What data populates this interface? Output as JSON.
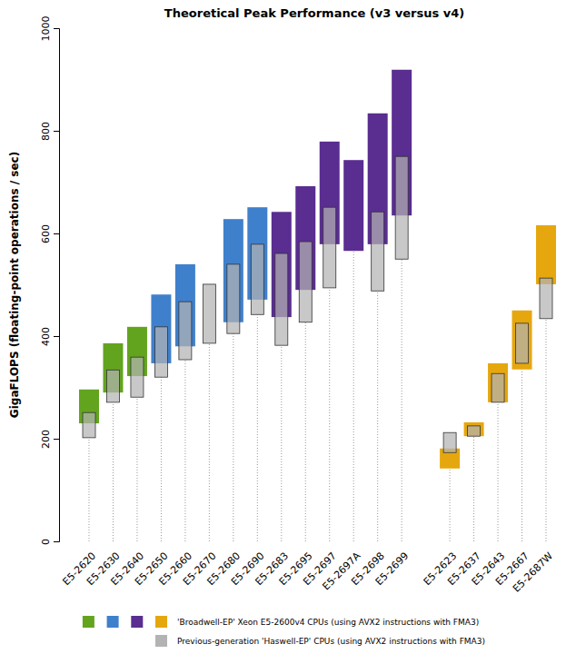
{
  "chart_data": {
    "type": "bar",
    "title": "Theoretical Peak Performance (v3 versus v4)",
    "y_label": "GigaFLOPS (floating-point operations / sec)",
    "categories": [
      "E5-2620",
      "E5-2630",
      "E5-2640",
      "E5-2650",
      "E5-2660",
      "E5-2670",
      "E5-2680",
      "E5-2690",
      "E5-2683",
      "E5-2695",
      "E5-2697",
      "E5-2697A",
      "E5-2698",
      "E5-2699",
      null,
      "E5-2623",
      "E5-2637",
      "E5-2643",
      "E5-2667",
      "E5-2687W"
    ],
    "ylim": [
      0,
      1000
    ],
    "yticks": [
      0,
      200,
      400,
      600,
      800,
      1000
    ],
    "grid": false,
    "series": [
      {
        "name": "'Broadwell-EP' Xeon E5-2600v4 CPUs (using AVX2 instructions with FMA3)",
        "colors": [
          "#63a41f",
          "#63a41f",
          "#63a41f",
          "#3f80cc",
          "#3f80cc",
          null,
          "#3f80cc",
          "#3f80cc",
          "#5a2d91",
          "#5a2d91",
          "#5a2d91",
          "#5a2d91",
          "#5a2d91",
          "#5a2d91",
          null,
          "#e6a70e",
          "#e6a70e",
          "#e6a70e",
          "#e6a70e",
          "#e6a70e"
        ],
        "values": [
          [
            230,
            296
          ],
          [
            290,
            386
          ],
          [
            322,
            418
          ],
          [
            347,
            481
          ],
          [
            380,
            540
          ],
          null,
          [
            427,
            628
          ],
          [
            471,
            651
          ],
          [
            437,
            642
          ],
          [
            490,
            692
          ],
          [
            579,
            779
          ],
          [
            566,
            743
          ],
          [
            579,
            834
          ],
          [
            635,
            919
          ],
          null,
          [
            142,
            181
          ],
          [
            205,
            232
          ],
          [
            271,
            347
          ],
          [
            335,
            450
          ],
          [
            501,
            616
          ]
        ]
      },
      {
        "name": "Previous-generation 'Haswell-EP' CPUs (using AVX2 instructions with FMA3)",
        "color": "#b3b3b3",
        "values": [
          [
            202,
            251
          ],
          [
            271,
            334
          ],
          [
            281,
            359
          ],
          [
            320,
            418
          ],
          [
            354,
            467
          ],
          [
            386,
            501
          ],
          [
            405,
            540
          ],
          [
            442,
            579
          ],
          [
            382,
            561
          ],
          [
            427,
            584
          ],
          [
            494,
            651
          ],
          null,
          [
            488,
            642
          ],
          [
            550,
            750
          ],
          null,
          [
            173,
            212
          ],
          [
            205,
            225
          ],
          [
            271,
            327
          ],
          [
            347,
            425
          ],
          [
            434,
            513
          ]
        ]
      }
    ]
  }
}
